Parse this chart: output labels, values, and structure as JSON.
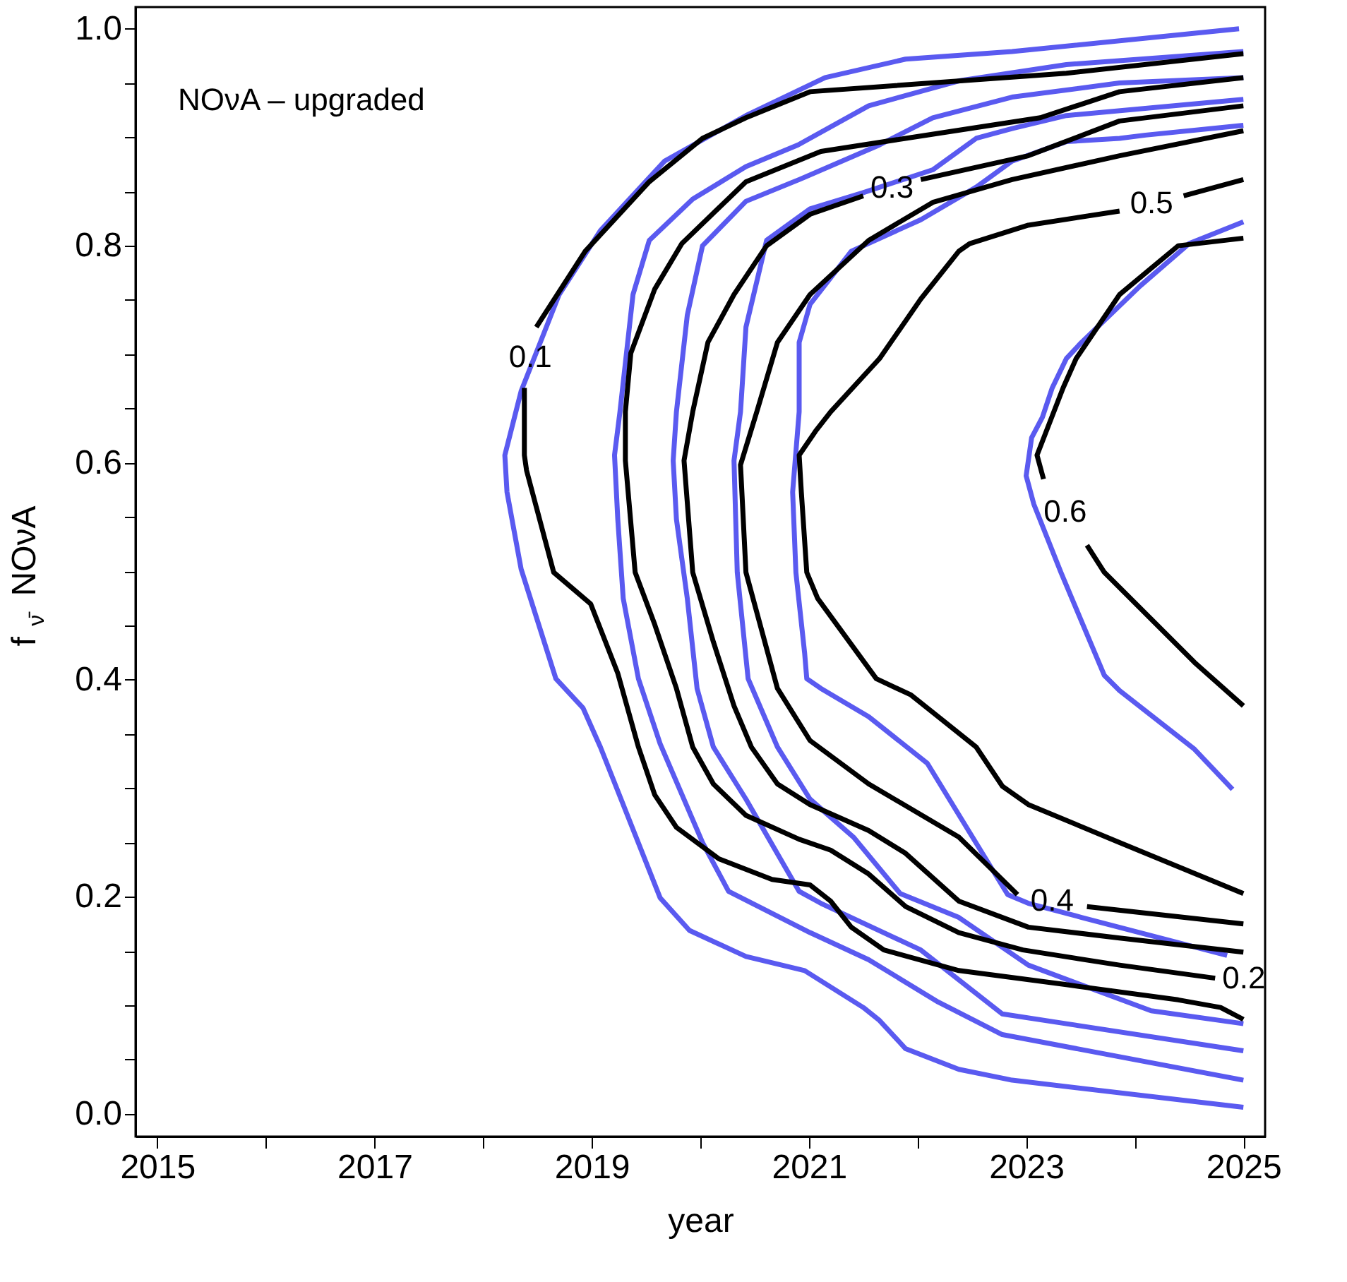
{
  "chart_data": {
    "type": "line",
    "title": "NOνA – upgraded",
    "xlabel": "year",
    "ylabel": "f$_{ν̄}$ NOνA",
    "xlim": [
      2014.8,
      2025.2
    ],
    "ylim": [
      -0.021,
      1.02
    ],
    "xticks": [
      2015,
      {
        "value": 2016,
        "label": null
      },
      2017,
      {
        "value": 2018,
        "label": null
      },
      2019,
      {
        "value": 2020,
        "label": null
      },
      2021,
      {
        "value": 2022,
        "label": null
      },
      2023,
      {
        "value": 2024,
        "label": null
      },
      2025
    ],
    "yticks": [
      {
        "value": 0,
        "label": "0.0"
      },
      {
        "value": 0.05,
        "label": null
      },
      {
        "value": 0.1,
        "label": null
      },
      {
        "value": 0.15,
        "label": null
      },
      0.2,
      {
        "value": 0.25,
        "label": null
      },
      {
        "value": 0.3,
        "label": null
      },
      {
        "value": 0.35,
        "label": null
      },
      0.4,
      {
        "value": 0.45,
        "label": null
      },
      {
        "value": 0.5,
        "label": null
      },
      {
        "value": 0.55,
        "label": null
      },
      0.6,
      {
        "value": 0.65,
        "label": null
      },
      {
        "value": 0.7,
        "label": null
      },
      {
        "value": 0.75,
        "label": null
      },
      0.8,
      {
        "value": 0.85,
        "label": null
      },
      {
        "value": 0.9,
        "label": null
      },
      {
        "value": 0.95,
        "label": null
      },
      {
        "value": 1,
        "label": "1.0"
      }
    ],
    "grid": false,
    "marker": "none",
    "line_style": "solid",
    "series": [
      {
        "color": "#5a5af0",
        "x": [
          2024.96,
          2022.87,
          2021.89,
          2021.15,
          2020.42,
          2019.67,
          2019.08,
          2018.7,
          2018.35,
          2018.2,
          2018.22,
          2018.35,
          2018.67,
          2018.92,
          2019.08,
          2019.63,
          2019.9,
          2020.42,
          2020.96,
          2021.5,
          2021.65,
          2021.89,
          2022.38,
          2022.87,
          2025
        ],
        "values": [
          1.0,
          0.979,
          0.972,
          0.955,
          0.92,
          0.878,
          0.814,
          0.755,
          0.666,
          0.607,
          0.573,
          0.502,
          0.401,
          0.374,
          0.338,
          0.199,
          0.169,
          0.145,
          0.132,
          0.098,
          0.086,
          0.06,
          0.041,
          0.031,
          0.006
        ]
      },
      {
        "color": "#5a5af0",
        "x": [
          2025,
          2023.37,
          2022.38,
          2021.55,
          2020.9,
          2020.42,
          2019.93,
          2019.53,
          2019.38,
          2019.26,
          2019.21,
          2019.24,
          2019.29,
          2019.43,
          2019.63,
          2020.02,
          2020.26,
          2021.01,
          2021.55,
          2022.19,
          2022.78,
          2025
        ],
        "values": [
          0.979,
          0.967,
          0.952,
          0.929,
          0.893,
          0.873,
          0.843,
          0.805,
          0.755,
          0.647,
          0.607,
          0.548,
          0.475,
          0.401,
          0.341,
          0.25,
          0.205,
          0.167,
          0.142,
          0.103,
          0.073,
          0.031
        ]
      },
      {
        "color": "#5a5af0",
        "x": [
          2025,
          2023.86,
          2022.87,
          2022.14,
          2021.65,
          2020.91,
          2020.42,
          2020.02,
          2019.88,
          2019.78,
          2019.75,
          2019.78,
          2019.88,
          2019.97,
          2020.12,
          2020.42,
          2020.91,
          2021.11,
          2022.03,
          2022.78,
          2023.37,
          2025
        ],
        "values": [
          0.955,
          0.95,
          0.937,
          0.918,
          0.893,
          0.861,
          0.841,
          0.8,
          0.736,
          0.647,
          0.602,
          0.548,
          0.475,
          0.392,
          0.338,
          0.29,
          0.205,
          0.194,
          0.151,
          0.092,
          0.083,
          0.058
        ]
      },
      {
        "color": "#5a5af0",
        "x": [
          2025,
          2023.37,
          2022.87,
          2022.54,
          2022.14,
          2021.5,
          2021.01,
          2020.61,
          2020.42,
          2020.37,
          2020.31,
          2020.34,
          2020.44,
          2020.71,
          2021.01,
          2021.41,
          2021.84,
          2022.38,
          2023.02,
          2024.15,
          2025
        ],
        "values": [
          0.935,
          0.92,
          0.908,
          0.899,
          0.87,
          0.849,
          0.834,
          0.805,
          0.725,
          0.647,
          0.602,
          0.499,
          0.401,
          0.338,
          0.29,
          0.255,
          0.203,
          0.181,
          0.137,
          0.095,
          0.083
        ]
      },
      {
        "color": "#5a5af0",
        "x": [
          2025,
          2024.1,
          2023.86,
          2023.37,
          2022.87,
          2022.54,
          2022.03,
          2021.39,
          2021.01,
          2020.91,
          2020.91,
          2020.85,
          2020.88,
          2020.96,
          2020.98,
          2021.11,
          2021.55,
          2022.09,
          2022.83,
          2023.02,
          2023.51,
          2024.85
        ],
        "values": [
          0.911,
          0.902,
          0.899,
          0.896,
          0.878,
          0.854,
          0.824,
          0.795,
          0.746,
          0.711,
          0.647,
          0.573,
          0.499,
          0.425,
          0.401,
          0.392,
          0.366,
          0.323,
          0.202,
          0.194,
          0.181,
          0.146
        ]
      },
      {
        "color": "#5a5af0",
        "x": [
          2025,
          2024.5,
          2024.05,
          2023.51,
          2023.37,
          2023.24,
          2023.15,
          2023.05,
          2023.0,
          2023.07,
          2023.32,
          2023.72,
          2023.86,
          2024.55,
          2024.9
        ],
        "values": [
          0.822,
          0.802,
          0.763,
          0.711,
          0.696,
          0.669,
          0.642,
          0.623,
          0.588,
          0.562,
          0.499,
          0.404,
          0.39,
          0.336,
          0.299
        ]
      },
      {
        "color": "#000000",
        "x": [
          2025,
          2023.37,
          2021.01,
          2020.42,
          2020.02,
          2019.53,
          2018.94,
          2018.49,
          null,
          2018.38,
          2018.38,
          2018.4,
          2018.65,
          2018.99,
          2019.24,
          2019.43,
          2019.58,
          2019.78,
          2020.17,
          2020.66,
          2021.01,
          2021.2,
          2021.39,
          2021.69,
          2022.38,
          2023.37,
          2024.4,
          2024.79,
          2025
        ],
        "values": [
          0.977,
          0.959,
          0.942,
          0.918,
          0.899,
          0.859,
          0.795,
          0.725,
          null,
          0.669,
          0.607,
          0.593,
          0.499,
          0.47,
          0.406,
          0.338,
          0.294,
          0.264,
          0.235,
          0.216,
          0.211,
          0.196,
          0.172,
          0.151,
          0.132,
          0.119,
          0.105,
          0.098,
          0.087
        ]
      },
      {
        "color": "#000000",
        "x": [
          2025,
          2023.86,
          2023.13,
          2021.89,
          2021.11,
          2020.42,
          2019.83,
          2019.58,
          2019.36,
          2019.31,
          2019.31,
          2019.4,
          2019.58,
          2019.78,
          2019.93,
          2020.12,
          2020.42,
          2020.91,
          2021.2,
          2021.55,
          2021.89,
          2022.38,
          2022.97,
          2023.86,
          2024.74
        ],
        "values": [
          0.955,
          0.942,
          0.918,
          0.899,
          0.887,
          0.859,
          0.802,
          0.76,
          0.701,
          0.647,
          0.602,
          0.499,
          0.451,
          0.392,
          0.338,
          0.304,
          0.275,
          0.253,
          0.243,
          0.221,
          0.191,
          0.167,
          0.151,
          0.137,
          0.125
        ]
      },
      {
        "color": "#000000",
        "x": [
          2025,
          2023.86,
          2023.02,
          2022.03,
          null,
          2021.5,
          2021.01,
          2020.61,
          2020.31,
          2020.07,
          2019.93,
          2019.85,
          2019.93,
          2020.12,
          2020.31,
          2020.47,
          2020.71,
          2021.01,
          2021.55,
          2021.89,
          2022.38,
          2023.02,
          2023.86,
          2025
        ],
        "values": [
          0.929,
          0.915,
          0.883,
          0.861,
          null,
          0.846,
          0.829,
          0.8,
          0.755,
          0.711,
          0.647,
          0.602,
          0.499,
          0.435,
          0.376,
          0.338,
          0.304,
          0.285,
          0.261,
          0.24,
          0.196,
          0.172,
          0.162,
          0.149
        ]
      },
      {
        "color": "#000000",
        "x": [
          2025,
          2023.86,
          2022.87,
          2022.14,
          2021.55,
          2021.01,
          2020.71,
          2020.52,
          2020.37,
          2020.42,
          2020.71,
          2021.01,
          2021.55,
          2022.38,
          2022.92,
          null,
          2023.56,
          2025
        ],
        "values": [
          0.906,
          0.883,
          0.861,
          0.84,
          0.805,
          0.755,
          0.711,
          0.647,
          0.598,
          0.499,
          0.392,
          0.344,
          0.304,
          0.255,
          0.202,
          null,
          0.191,
          0.175
        ]
      },
      {
        "color": "#000000",
        "x": [
          2025,
          2024.45,
          null,
          2023.86,
          2023.02,
          2022.48,
          2022.38,
          2022.03,
          2021.65,
          2021.2,
          2021.06,
          2020.91,
          2020.93,
          2020.98,
          2021.08,
          2021.62,
          2021.94,
          2022.54,
          2022.78,
          2023.02,
          2023.86,
          2025
        ],
        "values": [
          0.861,
          0.846,
          null,
          0.832,
          0.819,
          0.802,
          0.795,
          0.751,
          0.696,
          0.647,
          0.629,
          0.607,
          0.573,
          0.499,
          0.475,
          0.401,
          0.386,
          0.338,
          0.302,
          0.285,
          0.25,
          0.203
        ]
      },
      {
        "color": "#000000",
        "x": [
          2025,
          2024.4,
          2023.86,
          2023.46,
          2023.34,
          2023.1,
          2023.16,
          null,
          2023.56,
          2023.72,
          2024.55,
          2025
        ],
        "values": [
          0.807,
          0.8,
          0.755,
          0.696,
          0.669,
          0.607,
          0.585,
          null,
          0.524,
          0.499,
          0.416,
          0.376
        ]
      }
    ],
    "annotations": [
      {
        "text": "0.1",
        "x": 2018.49,
        "y": 0.725
      },
      {
        "text": "0.2",
        "x": 2024.74,
        "y": 0.125
      },
      {
        "text": "0.3",
        "x": 2022.03,
        "y": 0.861
      },
      {
        "text": "0.4",
        "x": 2022.92,
        "y": 0.202
      },
      {
        "text": "0.5",
        "x": 2024.45,
        "y": 0.846
      },
      {
        "text": "0.6",
        "x": 2023.16,
        "y": 0.585
      }
    ]
  }
}
